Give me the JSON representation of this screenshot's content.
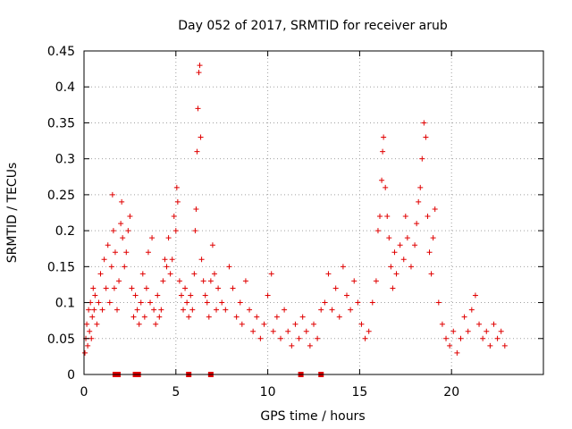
{
  "chart_data": {
    "type": "scatter",
    "title": "Day 052 of 2017, SRMTID for receiver arub",
    "xlabel": "GPS time / hours",
    "ylabel": "SRMTID / TECUs",
    "xlim": [
      0,
      25
    ],
    "ylim": [
      0,
      0.45
    ],
    "xticks": [
      0,
      5,
      10,
      15,
      20
    ],
    "xtick_labels": [
      "0",
      "5",
      "10",
      "15",
      "20"
    ],
    "yticks": [
      0,
      0.05,
      0.1,
      0.15,
      0.2,
      0.25,
      0.3,
      0.35,
      0.4,
      0.45
    ],
    "ytick_labels": [
      "0",
      "0.05",
      "0.1",
      "0.15",
      "0.2",
      "0.25",
      "0.3",
      "0.35",
      "0.4",
      "0.45"
    ],
    "grid": true,
    "legend": "none",
    "marker_color": "#e00000",
    "series": [
      {
        "name": "SRMTID",
        "marker": "plus",
        "points": [
          [
            0.05,
            0.03
          ],
          [
            0.1,
            0.05
          ],
          [
            0.15,
            0.07
          ],
          [
            0.2,
            0.04
          ],
          [
            0.25,
            0.09
          ],
          [
            0.3,
            0.06
          ],
          [
            0.35,
            0.1
          ],
          [
            0.4,
            0.05
          ],
          [
            0.45,
            0.08
          ],
          [
            0.5,
            0.12
          ],
          [
            0.55,
            0.09
          ],
          [
            0.6,
            0.11
          ],
          [
            0.7,
            0.07
          ],
          [
            0.8,
            0.1
          ],
          [
            0.9,
            0.14
          ],
          [
            1.0,
            0.09
          ],
          [
            1.1,
            0.16
          ],
          [
            1.2,
            0.12
          ],
          [
            1.3,
            0.18
          ],
          [
            1.4,
            0.1
          ],
          [
            1.5,
            0.15
          ],
          [
            1.55,
            0.25
          ],
          [
            1.6,
            0.2
          ],
          [
            1.65,
            0.12
          ],
          [
            1.7,
            0.17
          ],
          [
            1.8,
            0.09
          ],
          [
            1.9,
            0.13
          ],
          [
            2.0,
            0.21
          ],
          [
            2.05,
            0.24
          ],
          [
            2.1,
            0.19
          ],
          [
            2.2,
            0.15
          ],
          [
            2.3,
            0.17
          ],
          [
            2.4,
            0.2
          ],
          [
            2.5,
            0.22
          ],
          [
            2.6,
            0.12
          ],
          [
            2.7,
            0.08
          ],
          [
            2.8,
            0.11
          ],
          [
            2.9,
            0.09
          ],
          [
            3.0,
            0.07
          ],
          [
            3.1,
            0.1
          ],
          [
            3.2,
            0.14
          ],
          [
            3.3,
            0.08
          ],
          [
            3.4,
            0.12
          ],
          [
            3.5,
            0.17
          ],
          [
            3.6,
            0.1
          ],
          [
            3.7,
            0.19
          ],
          [
            3.8,
            0.09
          ],
          [
            3.9,
            0.07
          ],
          [
            4.0,
            0.11
          ],
          [
            4.1,
            0.08
          ],
          [
            4.2,
            0.09
          ],
          [
            4.3,
            0.13
          ],
          [
            4.4,
            0.16
          ],
          [
            4.5,
            0.15
          ],
          [
            4.6,
            0.19
          ],
          [
            4.7,
            0.14
          ],
          [
            4.8,
            0.16
          ],
          [
            4.9,
            0.22
          ],
          [
            5.0,
            0.2
          ],
          [
            5.05,
            0.26
          ],
          [
            5.1,
            0.24
          ],
          [
            5.2,
            0.13
          ],
          [
            5.3,
            0.11
          ],
          [
            5.4,
            0.09
          ],
          [
            5.5,
            0.12
          ],
          [
            5.6,
            0.1
          ],
          [
            5.7,
            0.08
          ],
          [
            5.8,
            0.11
          ],
          [
            5.9,
            0.09
          ],
          [
            6.0,
            0.14
          ],
          [
            6.05,
            0.2
          ],
          [
            6.1,
            0.23
          ],
          [
            6.15,
            0.31
          ],
          [
            6.2,
            0.37
          ],
          [
            6.25,
            0.42
          ],
          [
            6.3,
            0.43
          ],
          [
            6.35,
            0.33
          ],
          [
            6.4,
            0.16
          ],
          [
            6.5,
            0.13
          ],
          [
            6.6,
            0.11
          ],
          [
            6.7,
            0.1
          ],
          [
            6.8,
            0.08
          ],
          [
            6.9,
            0.13
          ],
          [
            7.0,
            0.18
          ],
          [
            7.1,
            0.14
          ],
          [
            7.2,
            0.09
          ],
          [
            7.3,
            0.12
          ],
          [
            7.5,
            0.1
          ],
          [
            7.7,
            0.09
          ],
          [
            7.9,
            0.15
          ],
          [
            8.1,
            0.12
          ],
          [
            8.3,
            0.08
          ],
          [
            8.5,
            0.1
          ],
          [
            8.6,
            0.07
          ],
          [
            8.8,
            0.13
          ],
          [
            9.0,
            0.09
          ],
          [
            9.2,
            0.06
          ],
          [
            9.4,
            0.08
          ],
          [
            9.6,
            0.05
          ],
          [
            9.8,
            0.07
          ],
          [
            10.0,
            0.11
          ],
          [
            10.2,
            0.14
          ],
          [
            10.3,
            0.06
          ],
          [
            10.5,
            0.08
          ],
          [
            10.7,
            0.05
          ],
          [
            10.9,
            0.09
          ],
          [
            11.1,
            0.06
          ],
          [
            11.3,
            0.04
          ],
          [
            11.5,
            0.07
          ],
          [
            11.7,
            0.05
          ],
          [
            11.9,
            0.08
          ],
          [
            12.1,
            0.06
          ],
          [
            12.3,
            0.04
          ],
          [
            12.5,
            0.07
          ],
          [
            12.7,
            0.05
          ],
          [
            12.9,
            0.09
          ],
          [
            13.1,
            0.1
          ],
          [
            13.3,
            0.14
          ],
          [
            13.5,
            0.09
          ],
          [
            13.7,
            0.12
          ],
          [
            13.9,
            0.08
          ],
          [
            14.1,
            0.15
          ],
          [
            14.3,
            0.11
          ],
          [
            14.5,
            0.09
          ],
          [
            14.7,
            0.13
          ],
          [
            14.9,
            0.1
          ],
          [
            15.1,
            0.07
          ],
          [
            15.3,
            0.05
          ],
          [
            15.5,
            0.06
          ],
          [
            15.7,
            0.1
          ],
          [
            15.9,
            0.13
          ],
          [
            16.0,
            0.2
          ],
          [
            16.1,
            0.22
          ],
          [
            16.2,
            0.27
          ],
          [
            16.25,
            0.31
          ],
          [
            16.3,
            0.33
          ],
          [
            16.4,
            0.26
          ],
          [
            16.5,
            0.22
          ],
          [
            16.6,
            0.19
          ],
          [
            16.7,
            0.15
          ],
          [
            16.8,
            0.12
          ],
          [
            16.9,
            0.17
          ],
          [
            17.0,
            0.14
          ],
          [
            17.2,
            0.18
          ],
          [
            17.4,
            0.16
          ],
          [
            17.5,
            0.22
          ],
          [
            17.6,
            0.19
          ],
          [
            17.8,
            0.15
          ],
          [
            18.0,
            0.18
          ],
          [
            18.1,
            0.21
          ],
          [
            18.2,
            0.24
          ],
          [
            18.3,
            0.26
          ],
          [
            18.4,
            0.3
          ],
          [
            18.5,
            0.35
          ],
          [
            18.6,
            0.33
          ],
          [
            18.7,
            0.22
          ],
          [
            18.8,
            0.17
          ],
          [
            18.9,
            0.14
          ],
          [
            19.0,
            0.19
          ],
          [
            19.1,
            0.23
          ],
          [
            19.3,
            0.1
          ],
          [
            19.5,
            0.07
          ],
          [
            19.7,
            0.05
          ],
          [
            19.9,
            0.04
          ],
          [
            20.1,
            0.06
          ],
          [
            20.3,
            0.03
          ],
          [
            20.5,
            0.05
          ],
          [
            20.7,
            0.08
          ],
          [
            20.9,
            0.06
          ],
          [
            21.1,
            0.09
          ],
          [
            21.3,
            0.11
          ],
          [
            21.5,
            0.07
          ],
          [
            21.7,
            0.05
          ],
          [
            21.9,
            0.06
          ],
          [
            22.1,
            0.04
          ],
          [
            22.3,
            0.07
          ],
          [
            22.5,
            0.05
          ],
          [
            22.7,
            0.06
          ],
          [
            22.9,
            0.04
          ]
        ]
      },
      {
        "name": "zero-values",
        "marker": "square",
        "points": [
          [
            1.7,
            0
          ],
          [
            1.85,
            0
          ],
          [
            2.8,
            0
          ],
          [
            2.95,
            0
          ],
          [
            5.7,
            0
          ],
          [
            6.9,
            0
          ],
          [
            11.8,
            0
          ],
          [
            12.9,
            0
          ]
        ]
      }
    ]
  }
}
